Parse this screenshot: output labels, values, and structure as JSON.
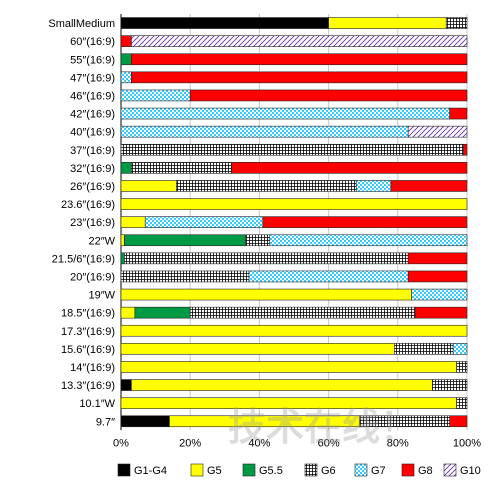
{
  "chart_data": {
    "type": "bar",
    "stacked": "percent",
    "orientation": "horizontal",
    "categories": [
      "SmallMedium",
      "60″(16:9)",
      "55″(16:9)",
      "47″(16:9)",
      "46″(16:9)",
      "42″(16:9)",
      "40″(16:9)",
      "37″(16:9)",
      "32″(16:9)",
      "26″(16:9)",
      "23.6″(16:9)",
      "23″(16:9)",
      "22″W",
      "21.5/6″(16:9)",
      "20″(16:9)",
      "19″W",
      "18.5″(16:9)",
      "17.3″(16:9)",
      "15.6″(16:9)",
      "14″(16:9)",
      "13.3″(16:9)",
      "10.1″W",
      "9.7″"
    ],
    "series": [
      {
        "name": "G1-G4",
        "color": "#000000",
        "pattern": "solid",
        "values": [
          60,
          0,
          0,
          0,
          0,
          0,
          0,
          0,
          0,
          0,
          0,
          0,
          0,
          0,
          0,
          0,
          0,
          0,
          0,
          0,
          3,
          0,
          14
        ]
      },
      {
        "name": "G5",
        "color": "#ffff00",
        "pattern": "solid",
        "values": [
          34,
          0,
          0,
          0,
          0,
          0,
          0,
          0,
          0,
          16,
          100,
          7,
          1,
          0,
          0,
          84,
          4,
          100,
          79,
          97,
          87,
          97,
          55
        ]
      },
      {
        "name": "G5.5",
        "color": "#009944",
        "pattern": "solid",
        "values": [
          0,
          0,
          3,
          0,
          0,
          0,
          0,
          0,
          3,
          0,
          0,
          0,
          35,
          1,
          0,
          0,
          16,
          0,
          0,
          0,
          0,
          0,
          0
        ]
      },
      {
        "name": "G6",
        "color": "#ffffff",
        "pattern": "crosshatch",
        "values": [
          6,
          0,
          0,
          0,
          0,
          0,
          0,
          99,
          29,
          52,
          0,
          0,
          7,
          82,
          37,
          0,
          65,
          0,
          17,
          3,
          10,
          3,
          26
        ]
      },
      {
        "name": "G7",
        "color": "#33ccff",
        "pattern": "checker",
        "values": [
          0,
          0,
          0,
          3,
          20,
          95,
          83,
          0,
          0,
          10,
          0,
          34,
          57,
          0,
          46,
          16,
          0,
          0,
          4,
          0,
          0,
          0,
          0
        ]
      },
      {
        "name": "G8",
        "color": "#ff0000",
        "pattern": "solid",
        "values": [
          0,
          3,
          97,
          97,
          80,
          5,
          0,
          1,
          68,
          22,
          0,
          59,
          0,
          17,
          17,
          0,
          15,
          0,
          0,
          0,
          0,
          0,
          5
        ]
      },
      {
        "name": "G10",
        "color": "#ffffff",
        "pattern": "diagonal",
        "values": [
          0,
          97,
          0,
          0,
          0,
          0,
          17,
          0,
          0,
          0,
          0,
          0,
          0,
          0,
          0,
          0,
          0,
          0,
          0,
          0,
          0,
          0,
          0
        ]
      }
    ],
    "xlim": [
      0,
      100
    ],
    "x_ticks": [
      "0%",
      "20%",
      "40%",
      "60%",
      "80%",
      "100%"
    ],
    "legend_position": "bottom",
    "grid": "vertical"
  },
  "watermark": "技术在线！"
}
